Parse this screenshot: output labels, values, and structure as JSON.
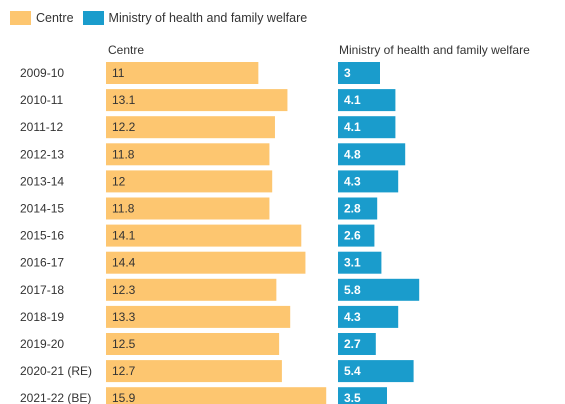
{
  "legend": [
    {
      "label": "Centre",
      "color": "#fdc670"
    },
    {
      "label": "Ministry of health and family welfare",
      "color": "#1a9ccc"
    }
  ],
  "columns": {
    "left_title": "Centre",
    "right_title": "Ministry of health and family welfare"
  },
  "chart_data": {
    "type": "bar",
    "orientation": "horizontal",
    "categories": [
      "2009-10",
      "2010-11",
      "2011-12",
      "2012-13",
      "2013-14",
      "2014-15",
      "2015-16",
      "2016-17",
      "2017-18",
      "2018-19",
      "2019-20",
      "2020-21 (RE)",
      "2021-22 (BE)"
    ],
    "series": [
      {
        "name": "Centre",
        "color": "#fdc670",
        "values": [
          11,
          13.1,
          12.2,
          11.8,
          12,
          11.8,
          14.1,
          14.4,
          12.3,
          13.3,
          12.5,
          12.7,
          15.9
        ]
      },
      {
        "name": "Ministry of health and family welfare",
        "color": "#1a9ccc",
        "values": [
          3,
          4.1,
          4.1,
          4.8,
          4.3,
          2.8,
          2.6,
          3.1,
          5.8,
          4.3,
          2.7,
          5.4,
          3.5
        ]
      }
    ],
    "grid": false,
    "legend_position": "top-left",
    "data_labels": true
  }
}
